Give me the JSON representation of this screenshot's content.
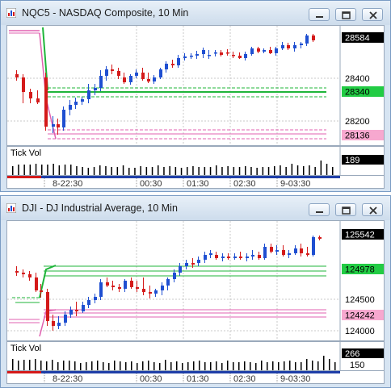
{
  "windows": [
    {
      "title": "NQC5 - NASDAQ Composite, 10 Min",
      "price_tags": [
        {
          "label": "28584",
          "bg": "#000000",
          "fg": "#ffffff"
        },
        {
          "label": "28340",
          "bg": "#22cc44",
          "fg": "#000000"
        },
        {
          "label": "28136",
          "bg": "#f7a8cf",
          "fg": "#000000"
        }
      ],
      "axis_labels": [
        "28400",
        "28200"
      ],
      "volume": {
        "title": "Tick Vol",
        "tag": "189",
        "scale_label": ""
      },
      "time_labels": [
        "8-22:30",
        "00:30",
        "01:30",
        "02:30",
        "9-03:30"
      ]
    },
    {
      "title": "DJI - DJ Industrial Average, 10 Min",
      "price_tags": [
        {
          "label": "125542",
          "bg": "#000000",
          "fg": "#ffffff"
        },
        {
          "label": "124978",
          "bg": "#22cc44",
          "fg": "#000000"
        },
        {
          "label": "124242",
          "bg": "#f7a8cf",
          "fg": "#000000"
        }
      ],
      "axis_labels": [
        "124500",
        "124000"
      ],
      "volume": {
        "title": "Tick Vol",
        "tag": "266",
        "scale_label": "150"
      },
      "time_labels": [
        "8-22:30",
        "00:30",
        "01:30",
        "02:30",
        "9-03:30"
      ]
    }
  ],
  "colors": {
    "up": "#1f4fd1",
    "down": "#d41a1a",
    "support": "#1fb53a",
    "resistance": "#e060b0"
  }
}
